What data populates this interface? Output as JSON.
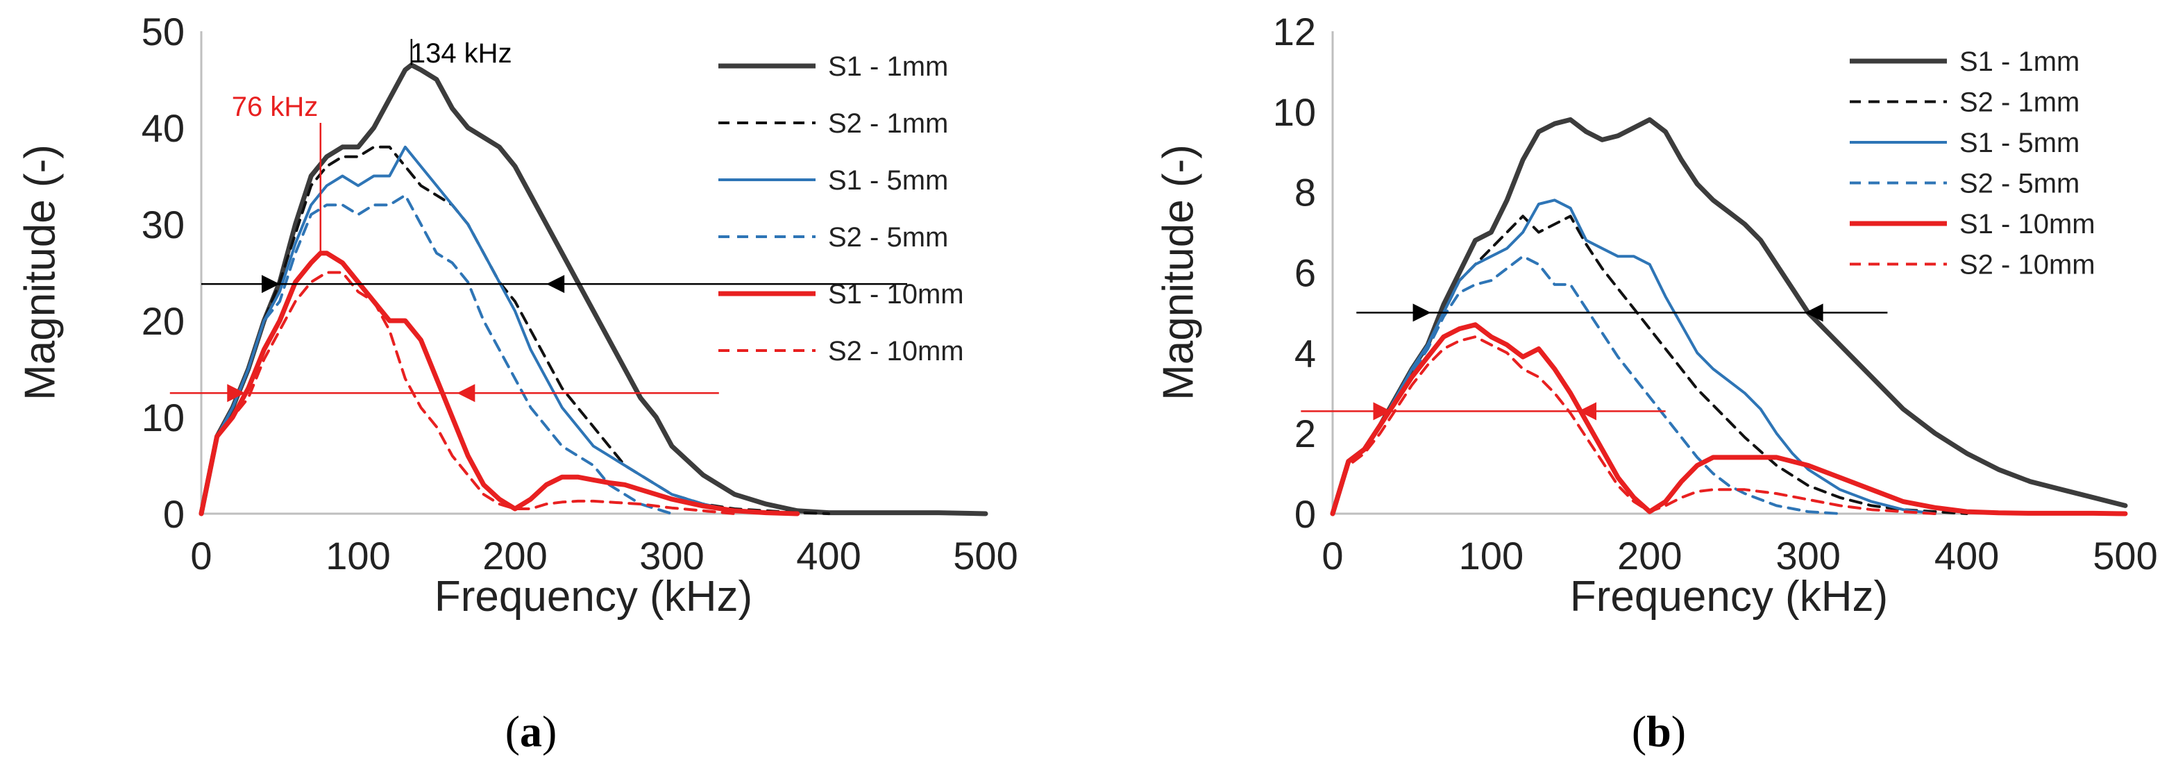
{
  "chart_data": [
    {
      "type": "line",
      "panel": "a",
      "caption_open": "(",
      "caption_letter": "a",
      "caption_close": ")",
      "xlabel": "Frequency (kHz)",
      "ylabel": "Magnitude  (-)",
      "xlim": [
        0,
        500
      ],
      "ylim": [
        0,
        50
      ],
      "xticks": [
        0,
        100,
        200,
        300,
        400,
        500
      ],
      "yticks": [
        0,
        10,
        20,
        30,
        40,
        50
      ],
      "series": [
        {
          "name": "S1 - 1mm",
          "color": "#3c3c3c",
          "dash": "solid",
          "width": 7,
          "x": [
            0,
            10,
            20,
            30,
            40,
            50,
            60,
            70,
            80,
            90,
            100,
            110,
            120,
            130,
            134,
            140,
            150,
            160,
            170,
            180,
            190,
            200,
            210,
            220,
            230,
            240,
            250,
            260,
            270,
            280,
            290,
            300,
            320,
            340,
            360,
            380,
            400,
            420,
            440,
            470,
            500
          ],
          "y": [
            0,
            8,
            11,
            15,
            20,
            24,
            30,
            35,
            37,
            38,
            38,
            40,
            43,
            46,
            46.5,
            46,
            45,
            42,
            40,
            39,
            38,
            36,
            33,
            30,
            27,
            24,
            21,
            18,
            15,
            12,
            10,
            7,
            4,
            2,
            1,
            0.3,
            0.1,
            0.1,
            0.1,
            0.1,
            0
          ]
        },
        {
          "name": "S2 - 1mm",
          "color": "#111111",
          "dash": "dashed",
          "width": 4,
          "x": [
            0,
            10,
            20,
            30,
            40,
            50,
            60,
            70,
            80,
            90,
            100,
            110,
            120,
            130,
            140,
            150,
            160,
            170,
            180,
            190,
            200,
            210,
            220,
            230,
            240,
            250,
            260,
            270,
            280,
            290,
            300,
            320,
            340,
            360,
            380,
            400
          ],
          "y": [
            0,
            8,
            11,
            15,
            20,
            24,
            29,
            34,
            36,
            37,
            37,
            38,
            38,
            36,
            34,
            33,
            32,
            30,
            27,
            24,
            22,
            19,
            16,
            13,
            11,
            9,
            7,
            5,
            4,
            3,
            2,
            1,
            0.5,
            0.3,
            0.1,
            0
          ]
        },
        {
          "name": "S1 - 5mm",
          "color": "#2e75b6",
          "dash": "solid",
          "width": 4,
          "x": [
            0,
            10,
            20,
            30,
            40,
            50,
            60,
            70,
            80,
            90,
            100,
            110,
            120,
            130,
            140,
            150,
            160,
            170,
            180,
            190,
            200,
            210,
            220,
            230,
            240,
            250,
            260,
            270,
            280,
            290,
            300,
            320,
            340,
            360,
            380
          ],
          "y": [
            0,
            8,
            11,
            15,
            20,
            23,
            28,
            32,
            34,
            35,
            34,
            35,
            35,
            38,
            36,
            34,
            32,
            30,
            27,
            24,
            21,
            17,
            14,
            11,
            9,
            7,
            6,
            5,
            4,
            3,
            2,
            1,
            0.3,
            0.1,
            0
          ]
        },
        {
          "name": "S2 - 5mm",
          "color": "#2e75b6",
          "dash": "dashed",
          "width": 4,
          "x": [
            0,
            10,
            20,
            30,
            40,
            50,
            60,
            70,
            80,
            90,
            100,
            110,
            120,
            130,
            140,
            150,
            160,
            170,
            180,
            190,
            200,
            210,
            220,
            230,
            240,
            250,
            260,
            270,
            280,
            290,
            300
          ],
          "y": [
            0,
            8,
            11,
            15,
            20,
            22,
            27,
            31,
            32,
            32,
            31,
            32,
            32,
            33,
            30,
            27,
            26,
            24,
            20,
            17,
            14,
            11,
            9,
            7,
            6,
            5,
            3,
            2,
            1,
            0.5,
            0
          ]
        },
        {
          "name": "S1 - 10mm",
          "color": "#e82020",
          "dash": "solid",
          "width": 7,
          "x": [
            0,
            10,
            20,
            30,
            40,
            50,
            60,
            70,
            76,
            80,
            90,
            100,
            110,
            120,
            130,
            140,
            150,
            160,
            170,
            180,
            190,
            200,
            210,
            220,
            230,
            240,
            250,
            260,
            270,
            280,
            290,
            300,
            320,
            340,
            360,
            380
          ],
          "y": [
            0,
            8,
            10,
            13,
            17,
            20,
            24,
            26,
            27,
            27,
            26,
            24,
            22,
            20,
            20,
            18,
            14,
            10,
            6,
            3,
            1.5,
            0.5,
            1.5,
            3,
            3.8,
            3.8,
            3.5,
            3.2,
            3,
            2.5,
            2,
            1.5,
            0.8,
            0.3,
            0.1,
            0
          ]
        },
        {
          "name": "S2 - 10mm",
          "color": "#e82020",
          "dash": "dashed",
          "width": 4,
          "x": [
            0,
            10,
            20,
            30,
            40,
            50,
            60,
            70,
            80,
            90,
            100,
            110,
            120,
            130,
            140,
            150,
            160,
            170,
            180,
            190,
            200,
            210,
            220,
            230,
            240,
            250,
            260,
            280,
            300,
            320,
            340
          ],
          "y": [
            0,
            8,
            10,
            12,
            16,
            19,
            22,
            24,
            25,
            25,
            23,
            22,
            19,
            14,
            11,
            9,
            6,
            4,
            2,
            1,
            0.5,
            0.5,
            1,
            1.2,
            1.3,
            1.3,
            1.2,
            1,
            0.6,
            0.3,
            0
          ]
        }
      ],
      "markers": [
        {
          "type": "hline",
          "y": 23.8,
          "x_from": 0,
          "x_to": 450,
          "color": "#000000",
          "arrow_left_at": 50,
          "arrow_right_at": 220
        },
        {
          "type": "hline",
          "y": 12.5,
          "x_from": -20,
          "x_to": 330,
          "color": "#e82020",
          "arrow_left_at": 28,
          "arrow_right_at": 163
        },
        {
          "type": "vline",
          "x": 76,
          "y_from": 27,
          "y_to": 40.5,
          "color": "#e82020",
          "label": "76 kHz"
        },
        {
          "type": "vline",
          "x": 134,
          "y_from": 46.5,
          "y_to": 49.2,
          "color": "#000000",
          "label": "134 kHz"
        }
      ]
    },
    {
      "type": "line",
      "panel": "b",
      "caption_open": "(",
      "caption_letter": "b",
      "caption_close": ")",
      "xlabel": "Frequency (kHz)",
      "ylabel": "Magnitude  (-)",
      "xlim": [
        0,
        500
      ],
      "ylim": [
        0,
        12
      ],
      "xticks": [
        0,
        100,
        200,
        300,
        400,
        500
      ],
      "yticks": [
        0,
        2,
        4,
        6,
        8,
        10,
        12
      ],
      "series": [
        {
          "name": "S1 - 1mm",
          "color": "#3c3c3c",
          "dash": "solid",
          "width": 7,
          "x": [
            0,
            10,
            20,
            30,
            40,
            50,
            60,
            70,
            80,
            90,
            100,
            110,
            120,
            130,
            140,
            150,
            160,
            170,
            180,
            190,
            200,
            210,
            220,
            230,
            240,
            250,
            260,
            270,
            280,
            290,
            300,
            310,
            320,
            340,
            360,
            380,
            400,
            420,
            440,
            460,
            480,
            500
          ],
          "y": [
            0,
            1.3,
            1.6,
            2.2,
            2.9,
            3.6,
            4.2,
            5.2,
            6,
            6.8,
            7,
            7.8,
            8.8,
            9.5,
            9.7,
            9.8,
            9.5,
            9.3,
            9.4,
            9.6,
            9.8,
            9.5,
            8.8,
            8.2,
            7.8,
            7.5,
            7.2,
            6.8,
            6.2,
            5.6,
            5,
            4.6,
            4.2,
            3.4,
            2.6,
            2,
            1.5,
            1.1,
            0.8,
            0.6,
            0.4,
            0.2
          ]
        },
        {
          "name": "S2 - 1mm",
          "color": "#111111",
          "dash": "dashed",
          "width": 4,
          "x": [
            0,
            10,
            20,
            30,
            40,
            50,
            60,
            70,
            80,
            90,
            100,
            110,
            120,
            130,
            140,
            150,
            160,
            170,
            180,
            190,
            200,
            210,
            220,
            230,
            240,
            250,
            260,
            280,
            300,
            320,
            340,
            360,
            380,
            400
          ],
          "y": [
            0,
            1.3,
            1.6,
            2.2,
            2.9,
            3.6,
            4.1,
            5,
            5.8,
            6.2,
            6.6,
            7,
            7.4,
            7,
            7.2,
            7.4,
            6.7,
            6.1,
            5.6,
            5.1,
            4.6,
            4.1,
            3.6,
            3.1,
            2.7,
            2.3,
            1.9,
            1.2,
            0.7,
            0.4,
            0.2,
            0.1,
            0.05,
            0
          ]
        },
        {
          "name": "S1 - 5mm",
          "color": "#2e75b6",
          "dash": "solid",
          "width": 4,
          "x": [
            0,
            10,
            20,
            30,
            40,
            50,
            60,
            70,
            80,
            90,
            100,
            110,
            120,
            130,
            140,
            150,
            160,
            170,
            180,
            190,
            200,
            210,
            220,
            230,
            240,
            250,
            260,
            270,
            280,
            290,
            300,
            320,
            340,
            360,
            380
          ],
          "y": [
            0,
            1.3,
            1.6,
            2.2,
            2.9,
            3.6,
            4.2,
            5,
            5.8,
            6.2,
            6.4,
            6.6,
            7,
            7.7,
            7.8,
            7.6,
            6.8,
            6.6,
            6.4,
            6.4,
            6.2,
            5.4,
            4.7,
            4,
            3.6,
            3.3,
            3,
            2.6,
            2,
            1.5,
            1.1,
            0.6,
            0.3,
            0.1,
            0
          ]
        },
        {
          "name": "S2 - 5mm",
          "color": "#2e75b6",
          "dash": "dashed",
          "width": 4,
          "x": [
            0,
            10,
            20,
            30,
            40,
            50,
            60,
            70,
            80,
            90,
            100,
            110,
            120,
            130,
            140,
            150,
            160,
            170,
            180,
            190,
            200,
            210,
            220,
            230,
            240,
            250,
            260,
            280,
            300,
            320
          ],
          "y": [
            0,
            1.3,
            1.6,
            2.2,
            2.8,
            3.5,
            4.1,
            4.9,
            5.5,
            5.7,
            5.8,
            6.1,
            6.4,
            6.2,
            5.7,
            5.7,
            5.1,
            4.5,
            3.9,
            3.4,
            2.9,
            2.4,
            1.9,
            1.4,
            1,
            0.7,
            0.5,
            0.2,
            0.05,
            0
          ]
        },
        {
          "name": "S1 - 10mm",
          "color": "#e82020",
          "dash": "solid",
          "width": 7,
          "x": [
            0,
            10,
            20,
            30,
            40,
            50,
            60,
            70,
            80,
            90,
            100,
            110,
            120,
            130,
            140,
            150,
            160,
            170,
            180,
            190,
            200,
            210,
            220,
            230,
            240,
            260,
            280,
            300,
            320,
            340,
            360,
            380,
            400,
            420,
            440,
            460,
            480,
            500
          ],
          "y": [
            0,
            1.3,
            1.6,
            2.2,
            2.8,
            3.4,
            3.9,
            4.4,
            4.6,
            4.7,
            4.4,
            4.2,
            3.9,
            4.1,
            3.6,
            3,
            2.3,
            1.6,
            0.9,
            0.4,
            0.05,
            0.3,
            0.8,
            1.2,
            1.4,
            1.4,
            1.4,
            1.2,
            0.9,
            0.6,
            0.3,
            0.15,
            0.05,
            0.02,
            0.01,
            0.01,
            0.01,
            0
          ]
        },
        {
          "name": "S2 - 10mm",
          "color": "#e82020",
          "dash": "dashed",
          "width": 4,
          "x": [
            0,
            10,
            20,
            30,
            40,
            50,
            60,
            70,
            80,
            90,
            100,
            110,
            120,
            130,
            140,
            150,
            160,
            170,
            180,
            190,
            200,
            210,
            220,
            230,
            240,
            260,
            280,
            300,
            320,
            340,
            360,
            380
          ],
          "y": [
            0,
            1.2,
            1.5,
            2,
            2.6,
            3.2,
            3.7,
            4.1,
            4.3,
            4.4,
            4.2,
            4,
            3.6,
            3.4,
            3,
            2.5,
            1.9,
            1.3,
            0.7,
            0.3,
            0.05,
            0.2,
            0.4,
            0.55,
            0.6,
            0.6,
            0.5,
            0.35,
            0.2,
            0.1,
            0.05,
            0
          ]
        }
      ],
      "markers": [
        {
          "type": "hline",
          "y": 5,
          "x_from": 15,
          "x_to": 350,
          "color": "#000000",
          "arrow_left_at": 62,
          "arrow_right_at": 298
        },
        {
          "type": "hline",
          "y": 2.55,
          "x_from": -20,
          "x_to": 210,
          "color": "#e82020",
          "arrow_left_at": 37,
          "arrow_right_at": 155
        }
      ]
    }
  ]
}
